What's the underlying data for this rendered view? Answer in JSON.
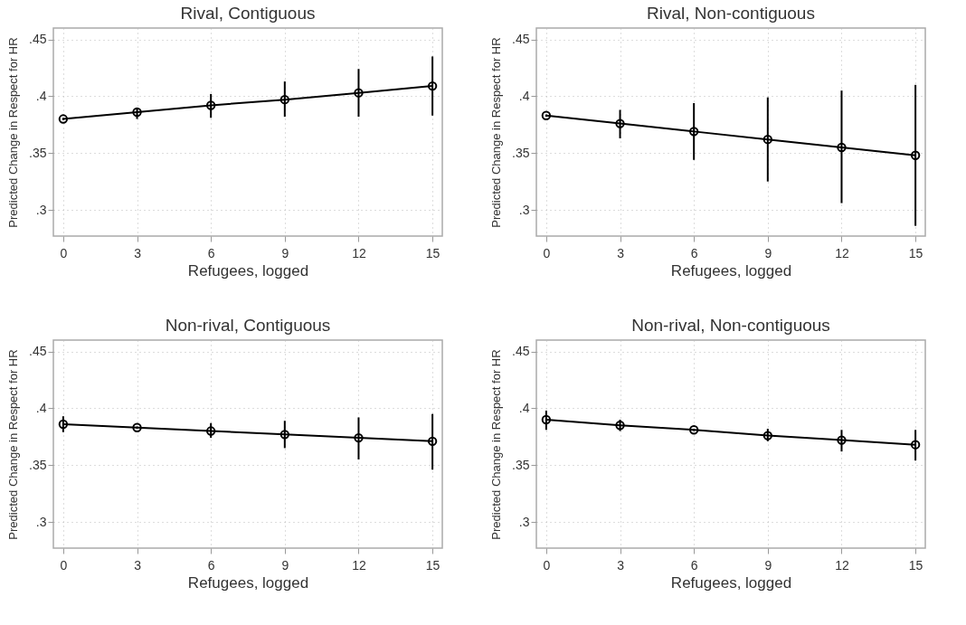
{
  "chart_data": [
    {
      "type": "line",
      "title": "Rival, Contiguous",
      "xlabel": "Refugees, logged",
      "ylabel": "Predicted Change in Respect for HR",
      "x": [
        0,
        3,
        6,
        9,
        12,
        15
      ],
      "series": [
        {
          "color": "#000000",
          "values": [
            0.38,
            0.386,
            0.392,
            0.397,
            0.403,
            0.409
          ],
          "errors": [
            [
              0.379,
              0.381
            ],
            [
              0.38,
              0.39
            ],
            [
              0.381,
              0.402
            ],
            [
              0.382,
              0.413
            ],
            [
              0.382,
              0.424
            ],
            [
              0.383,
              0.435
            ]
          ]
        }
      ],
      "xlim": [
        -0.4,
        15.4
      ],
      "ylim": [
        0.277,
        0.46
      ],
      "xticks": [
        0,
        3,
        6,
        9,
        12,
        15
      ],
      "yticks": [
        {
          "value": 0.3,
          "label": ".3"
        },
        {
          "value": 0.35,
          "label": ".35"
        },
        {
          "value": 0.4,
          "label": ".4"
        },
        {
          "value": 0.45,
          "label": ".45"
        }
      ],
      "grid": true,
      "marker": "circle"
    },
    {
      "type": "line",
      "title": "Rival, Non-contiguous",
      "xlabel": "Refugees, logged",
      "ylabel": "Predicted Change in Respect for HR",
      "x": [
        0,
        3,
        6,
        9,
        12,
        15
      ],
      "series": [
        {
          "color": "#000000",
          "values": [
            0.383,
            0.376,
            0.369,
            0.362,
            0.355,
            0.348
          ],
          "errors": [
            [
              0.382,
              0.384
            ],
            [
              0.363,
              0.388
            ],
            [
              0.344,
              0.394
            ],
            [
              0.325,
              0.399
            ],
            [
              0.306,
              0.405
            ],
            [
              0.286,
              0.41
            ]
          ]
        }
      ],
      "xlim": [
        -0.4,
        15.4
      ],
      "ylim": [
        0.277,
        0.46
      ],
      "xticks": [
        0,
        3,
        6,
        9,
        12,
        15
      ],
      "yticks": [
        {
          "value": 0.3,
          "label": ".3"
        },
        {
          "value": 0.35,
          "label": ".35"
        },
        {
          "value": 0.4,
          "label": ".4"
        },
        {
          "value": 0.45,
          "label": ".45"
        }
      ],
      "grid": true,
      "marker": "circle"
    },
    {
      "type": "line",
      "title": "Non-rival, Contiguous",
      "xlabel": "Refugees, logged",
      "ylabel": "Predicted Change in Respect for HR",
      "x": [
        0,
        3,
        6,
        9,
        12,
        15
      ],
      "series": [
        {
          "color": "#000000",
          "values": [
            0.386,
            0.383,
            0.38,
            0.377,
            0.374,
            0.371
          ],
          "errors": [
            [
              0.379,
              0.393
            ],
            [
              0.382,
              0.384
            ],
            [
              0.374,
              0.387
            ],
            [
              0.365,
              0.389
            ],
            [
              0.355,
              0.392
            ],
            [
              0.346,
              0.395
            ]
          ]
        }
      ],
      "xlim": [
        -0.4,
        15.4
      ],
      "ylim": [
        0.277,
        0.46
      ],
      "xticks": [
        0,
        3,
        6,
        9,
        12,
        15
      ],
      "yticks": [
        {
          "value": 0.3,
          "label": ".3"
        },
        {
          "value": 0.35,
          "label": ".35"
        },
        {
          "value": 0.4,
          "label": ".4"
        },
        {
          "value": 0.45,
          "label": ".45"
        }
      ],
      "grid": true,
      "marker": "circle"
    },
    {
      "type": "line",
      "title": "Non-rival, Non-contiguous",
      "xlabel": "Refugees, logged",
      "ylabel": "Predicted Change in Respect for HR",
      "x": [
        0,
        3,
        6,
        9,
        12,
        15
      ],
      "series": [
        {
          "color": "#000000",
          "values": [
            0.39,
            0.385,
            0.381,
            0.376,
            0.372,
            0.368
          ],
          "errors": [
            [
              0.381,
              0.398
            ],
            [
              0.38,
              0.39
            ],
            [
              0.38,
              0.382
            ],
            [
              0.371,
              0.382
            ],
            [
              0.362,
              0.381
            ],
            [
              0.354,
              0.381
            ]
          ]
        }
      ],
      "xlim": [
        -0.4,
        15.4
      ],
      "ylim": [
        0.277,
        0.46
      ],
      "xticks": [
        0,
        3,
        6,
        9,
        12,
        15
      ],
      "yticks": [
        {
          "value": 0.3,
          "label": ".3"
        },
        {
          "value": 0.35,
          "label": ".35"
        },
        {
          "value": 0.4,
          "label": ".4"
        },
        {
          "value": 0.45,
          "label": ".45"
        }
      ],
      "grid": true,
      "marker": "circle"
    }
  ]
}
